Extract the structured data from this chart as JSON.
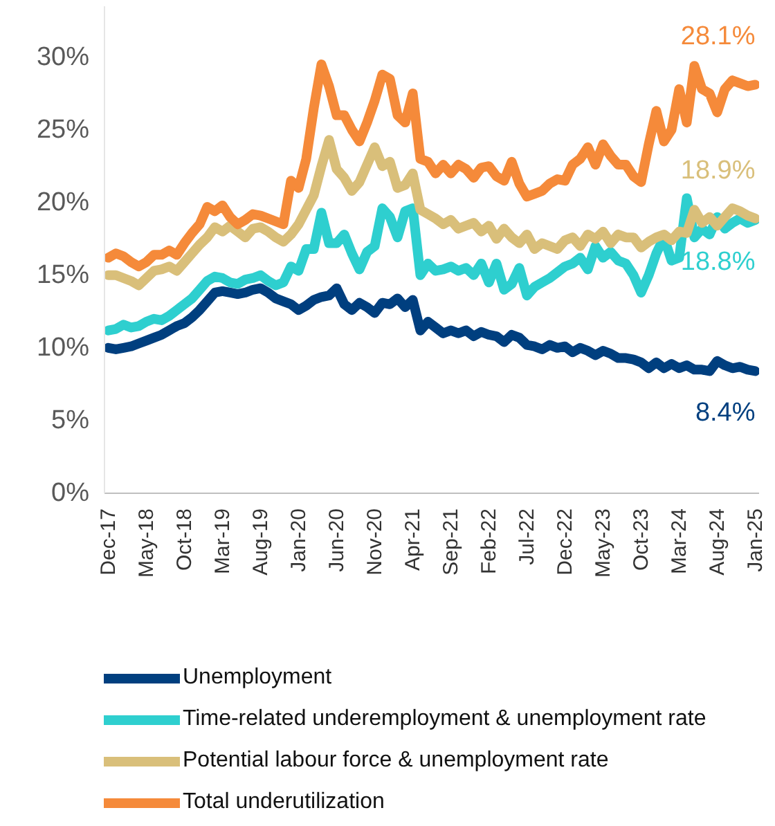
{
  "chart_data": {
    "type": "line",
    "categories": [
      "Dec-17",
      null,
      null,
      null,
      null,
      "May-18",
      null,
      null,
      null,
      null,
      "Oct-18",
      null,
      null,
      null,
      null,
      "Mar-19",
      null,
      null,
      null,
      null,
      "Aug-19",
      null,
      null,
      null,
      null,
      "Jan-20",
      null,
      null,
      null,
      null,
      "Jun-20",
      null,
      null,
      null,
      null,
      "Nov-20",
      null,
      null,
      null,
      null,
      "Apr-21",
      null,
      null,
      null,
      null,
      "Sep-21",
      null,
      null,
      null,
      null,
      "Feb-22",
      null,
      null,
      null,
      null,
      "Jul-22",
      null,
      null,
      null,
      null,
      "Dec-22",
      null,
      null,
      null,
      null,
      "May-23",
      null,
      null,
      null,
      null,
      "Oct-23",
      null,
      null,
      null,
      null,
      "Mar-24",
      null,
      null,
      null,
      null,
      "Aug-24",
      null,
      null,
      null,
      null,
      "Jan-25"
    ],
    "series": [
      {
        "name": "Unemployment",
        "color": "#003f7f",
        "values": [
          10.0,
          9.9,
          10.0,
          10.1,
          10.3,
          10.5,
          10.7,
          10.9,
          11.2,
          11.5,
          11.7,
          12.1,
          12.6,
          13.2,
          13.8,
          13.9,
          13.8,
          13.7,
          13.8,
          14.0,
          14.1,
          13.8,
          13.4,
          13.2,
          13.0,
          12.6,
          12.9,
          13.3,
          13.5,
          13.6,
          14.1,
          13.0,
          12.6,
          13.1,
          12.8,
          12.4,
          13.1,
          13.0,
          13.4,
          12.8,
          13.3,
          11.2,
          11.8,
          11.4,
          11.0,
          11.2,
          11.0,
          11.2,
          10.8,
          11.1,
          10.9,
          10.8,
          10.4,
          10.9,
          10.7,
          10.2,
          10.1,
          9.9,
          10.2,
          10.0,
          10.1,
          9.7,
          10.0,
          9.8,
          9.5,
          9.8,
          9.6,
          9.3,
          9.3,
          9.2,
          9.0,
          8.6,
          9.0,
          8.6,
          8.9,
          8.6,
          8.8,
          8.5,
          8.5,
          8.4,
          9.1,
          8.8,
          8.6,
          8.7,
          8.5,
          8.4
        ],
        "value_labels": [
          null,
          null,
          null,
          null,
          null,
          null,
          null,
          null,
          null,
          null,
          null,
          null,
          null,
          null,
          null,
          null,
          null,
          null,
          null,
          null,
          null,
          null,
          null,
          null,
          null,
          null,
          null,
          null,
          null,
          null,
          null,
          null,
          null,
          null,
          null,
          null,
          null,
          null,
          null,
          null,
          null,
          null,
          null,
          null,
          null,
          null,
          null,
          null,
          null,
          null,
          null,
          null,
          null,
          null,
          null,
          null,
          null,
          null,
          null,
          null,
          null,
          null,
          null,
          null,
          null,
          null,
          null,
          null,
          null,
          null,
          null,
          null,
          null,
          null,
          null,
          null,
          null,
          null,
          null,
          null,
          null,
          null,
          null,
          null,
          null,
          "8.4%"
        ]
      },
      {
        "name": "Time-related underemployment & unemployment rate",
        "color": "#2ecfcf",
        "values": [
          11.2,
          11.3,
          11.6,
          11.4,
          11.5,
          11.8,
          12.0,
          11.9,
          12.2,
          12.6,
          13.0,
          13.4,
          14.0,
          14.6,
          14.9,
          14.8,
          14.5,
          14.4,
          14.7,
          14.8,
          15.0,
          14.6,
          14.3,
          14.5,
          15.6,
          15.3,
          16.8,
          16.8,
          19.3,
          17.2,
          17.2,
          17.8,
          16.5,
          15.4,
          16.6,
          17.0,
          19.6,
          19.0,
          17.6,
          19.4,
          19.6,
          15.0,
          15.8,
          15.3,
          15.4,
          15.6,
          15.3,
          15.5,
          15.0,
          15.8,
          14.5,
          15.8,
          14.0,
          14.4,
          15.5,
          13.6,
          14.2,
          14.5,
          14.8,
          15.2,
          15.6,
          15.8,
          16.2,
          15.4,
          17.0,
          16.2,
          16.6,
          16.0,
          15.8,
          15.0,
          13.8,
          15.0,
          16.5,
          17.6,
          16.0,
          16.2,
          20.3,
          17.6,
          18.2,
          17.8,
          19.0,
          18.2,
          18.6,
          18.9,
          18.6,
          18.8
        ],
        "value_labels": [
          null,
          null,
          null,
          null,
          null,
          null,
          null,
          null,
          null,
          null,
          null,
          null,
          null,
          null,
          null,
          null,
          null,
          null,
          null,
          null,
          null,
          null,
          null,
          null,
          null,
          null,
          null,
          null,
          null,
          null,
          null,
          null,
          null,
          null,
          null,
          null,
          null,
          null,
          null,
          null,
          null,
          null,
          null,
          null,
          null,
          null,
          null,
          null,
          null,
          null,
          null,
          null,
          null,
          null,
          null,
          null,
          null,
          null,
          null,
          null,
          null,
          null,
          null,
          null,
          null,
          null,
          null,
          null,
          null,
          null,
          null,
          null,
          null,
          null,
          null,
          null,
          null,
          null,
          null,
          null,
          null,
          null,
          null,
          null,
          null,
          "18.8%"
        ]
      },
      {
        "name": "Potential labour force & unemployment rate",
        "color": "#d9bf7a",
        "values": [
          15.0,
          15.0,
          14.8,
          14.6,
          14.3,
          14.8,
          15.3,
          15.4,
          15.6,
          15.3,
          15.9,
          16.5,
          17.1,
          17.6,
          18.3,
          18.0,
          18.4,
          18.0,
          17.6,
          18.2,
          18.3,
          18.0,
          17.6,
          17.3,
          17.8,
          18.5,
          19.5,
          20.5,
          22.5,
          24.3,
          22.3,
          21.7,
          20.8,
          21.4,
          22.6,
          23.8,
          22.5,
          22.8,
          21.0,
          21.2,
          22.0,
          19.5,
          19.2,
          18.9,
          18.5,
          18.8,
          18.2,
          18.4,
          18.6,
          18.0,
          18.4,
          17.5,
          18.2,
          17.6,
          17.2,
          17.8,
          16.8,
          17.2,
          17.0,
          16.8,
          17.4,
          17.6,
          17.0,
          17.8,
          17.5,
          18.0,
          17.2,
          17.8,
          17.6,
          17.6,
          16.9,
          17.3,
          17.6,
          17.8,
          17.4,
          18.0,
          17.9,
          19.5,
          18.6,
          19.0,
          18.4,
          19.0,
          19.6,
          19.4,
          19.1,
          18.9
        ],
        "value_labels": [
          null,
          null,
          null,
          null,
          null,
          null,
          null,
          null,
          null,
          null,
          null,
          null,
          null,
          null,
          null,
          null,
          null,
          null,
          null,
          null,
          null,
          null,
          null,
          null,
          null,
          null,
          null,
          null,
          null,
          null,
          null,
          null,
          null,
          null,
          null,
          null,
          null,
          null,
          null,
          null,
          null,
          null,
          null,
          null,
          null,
          null,
          null,
          null,
          null,
          null,
          null,
          null,
          null,
          null,
          null,
          null,
          null,
          null,
          null,
          null,
          null,
          null,
          null,
          null,
          null,
          null,
          null,
          null,
          null,
          null,
          null,
          null,
          null,
          null,
          null,
          null,
          null,
          null,
          null,
          null,
          null,
          null,
          null,
          null,
          null,
          "18.9%"
        ]
      },
      {
        "name": "Total underutilization",
        "color": "#f58a3a",
        "values": [
          16.2,
          16.5,
          16.3,
          15.9,
          15.6,
          15.9,
          16.4,
          16.4,
          16.7,
          16.4,
          17.2,
          17.9,
          18.5,
          19.7,
          19.4,
          19.8,
          19.0,
          18.5,
          18.8,
          19.2,
          19.1,
          18.9,
          18.7,
          18.5,
          21.5,
          21.0,
          23.0,
          26.5,
          29.5,
          28.0,
          26.0,
          26.0,
          25.0,
          24.2,
          25.5,
          27.0,
          28.8,
          28.5,
          26.0,
          25.5,
          27.5,
          23.0,
          22.8,
          22.0,
          22.6,
          22.0,
          22.6,
          22.3,
          21.7,
          22.4,
          22.5,
          21.8,
          21.5,
          22.8,
          21.3,
          20.4,
          20.6,
          20.8,
          21.3,
          21.6,
          21.5,
          22.6,
          23.0,
          23.8,
          22.6,
          24.0,
          23.2,
          22.6,
          22.6,
          21.8,
          21.4,
          24.0,
          26.3,
          24.2,
          25.0,
          27.8,
          25.5,
          29.4,
          27.8,
          27.5,
          26.2,
          27.8,
          28.4,
          28.2,
          28.0,
          28.1
        ],
        "value_labels": [
          null,
          null,
          null,
          null,
          null,
          null,
          null,
          null,
          null,
          null,
          null,
          null,
          null,
          null,
          null,
          null,
          null,
          null,
          null,
          null,
          null,
          null,
          null,
          null,
          null,
          null,
          null,
          null,
          null,
          null,
          null,
          null,
          null,
          null,
          null,
          null,
          null,
          null,
          null,
          null,
          null,
          null,
          null,
          null,
          null,
          null,
          null,
          null,
          null,
          null,
          null,
          null,
          null,
          null,
          null,
          null,
          null,
          null,
          null,
          null,
          null,
          null,
          null,
          null,
          null,
          null,
          null,
          null,
          null,
          null,
          null,
          null,
          null,
          null,
          null,
          null,
          null,
          null,
          null,
          null,
          null,
          null,
          null,
          null,
          null,
          "28.1%"
        ]
      }
    ],
    "ylim": [
      0,
      33.5
    ],
    "yticks": [
      {
        "value": 0,
        "label": "0%"
      },
      {
        "value": 5,
        "label": "5%"
      },
      {
        "value": 10,
        "label": "10%"
      },
      {
        "value": 15,
        "label": "15%"
      },
      {
        "value": 20,
        "label": "20%"
      },
      {
        "value": 25,
        "label": "25%"
      },
      {
        "value": 30,
        "label": "30%"
      }
    ],
    "grid": false,
    "legend": "bottom"
  }
}
